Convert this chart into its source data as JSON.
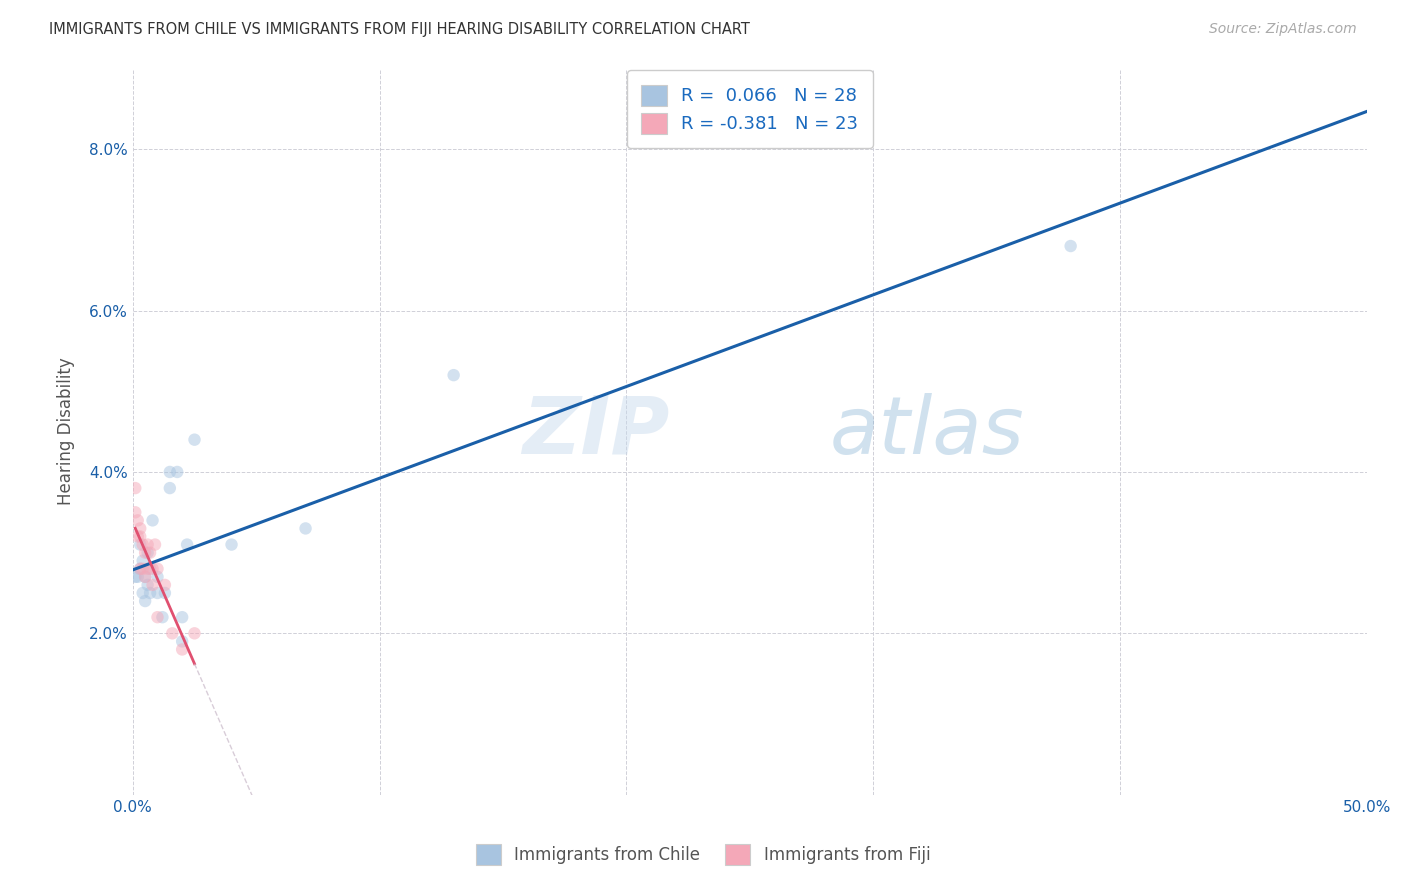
{
  "title": "IMMIGRANTS FROM CHILE VS IMMIGRANTS FROM FIJI HEARING DISABILITY CORRELATION CHART",
  "source": "Source: ZipAtlas.com",
  "xlabel": "",
  "ylabel": "Hearing Disability",
  "xlim": [
    0.0,
    50.0
  ],
  "ylim": [
    0.0,
    9.0
  ],
  "xticks": [
    0.0,
    10.0,
    20.0,
    30.0,
    40.0,
    50.0
  ],
  "xticklabels": [
    "0.0%",
    "",
    "",
    "",
    "",
    "50.0%"
  ],
  "yticks": [
    0.0,
    2.0,
    4.0,
    6.0,
    8.0
  ],
  "yticklabels": [
    "",
    "2.0%",
    "4.0%",
    "6.0%",
    "8.0%"
  ],
  "chile_color": "#a8c4e0",
  "fiji_color": "#f4a8b8",
  "chile_line_color": "#1a5fa8",
  "fiji_line_color": "#e05070",
  "fiji_line_dashed_color": "#c8b8c8",
  "chile_R": 0.066,
  "chile_N": 28,
  "fiji_R": -0.381,
  "fiji_N": 23,
  "legend_R_color": "#1a6abf",
  "watermark_zip": "ZIP",
  "watermark_atlas": "atlas",
  "chile_x": [
    0.1,
    0.2,
    0.3,
    0.3,
    0.4,
    0.4,
    0.5,
    0.5,
    0.6,
    0.6,
    0.7,
    0.7,
    0.8,
    1.0,
    1.0,
    1.2,
    1.3,
    1.5,
    1.5,
    1.8,
    2.0,
    2.0,
    2.2,
    2.5,
    4.0,
    7.0,
    13.0,
    38.0
  ],
  "chile_y": [
    2.7,
    2.7,
    3.1,
    2.8,
    2.9,
    2.5,
    2.7,
    2.4,
    3.0,
    2.6,
    2.8,
    2.5,
    3.4,
    2.7,
    2.5,
    2.2,
    2.5,
    4.0,
    3.8,
    4.0,
    1.9,
    2.2,
    3.1,
    4.4,
    3.1,
    3.3,
    5.2,
    6.8
  ],
  "fiji_x": [
    0.1,
    0.1,
    0.2,
    0.2,
    0.3,
    0.3,
    0.3,
    0.4,
    0.4,
    0.5,
    0.5,
    0.6,
    0.6,
    0.7,
    0.8,
    0.8,
    0.9,
    1.0,
    1.0,
    1.3,
    1.6,
    2.0,
    2.5
  ],
  "fiji_y": [
    3.5,
    3.8,
    3.4,
    3.2,
    3.3,
    3.2,
    2.8,
    3.1,
    2.8,
    3.0,
    2.7,
    3.1,
    2.8,
    3.0,
    2.6,
    2.8,
    3.1,
    2.8,
    2.2,
    2.6,
    2.0,
    1.8,
    2.0
  ],
  "background_color": "#ffffff",
  "grid_color": "#d0d0d8",
  "marker_size": 80,
  "marker_alpha": 0.5
}
